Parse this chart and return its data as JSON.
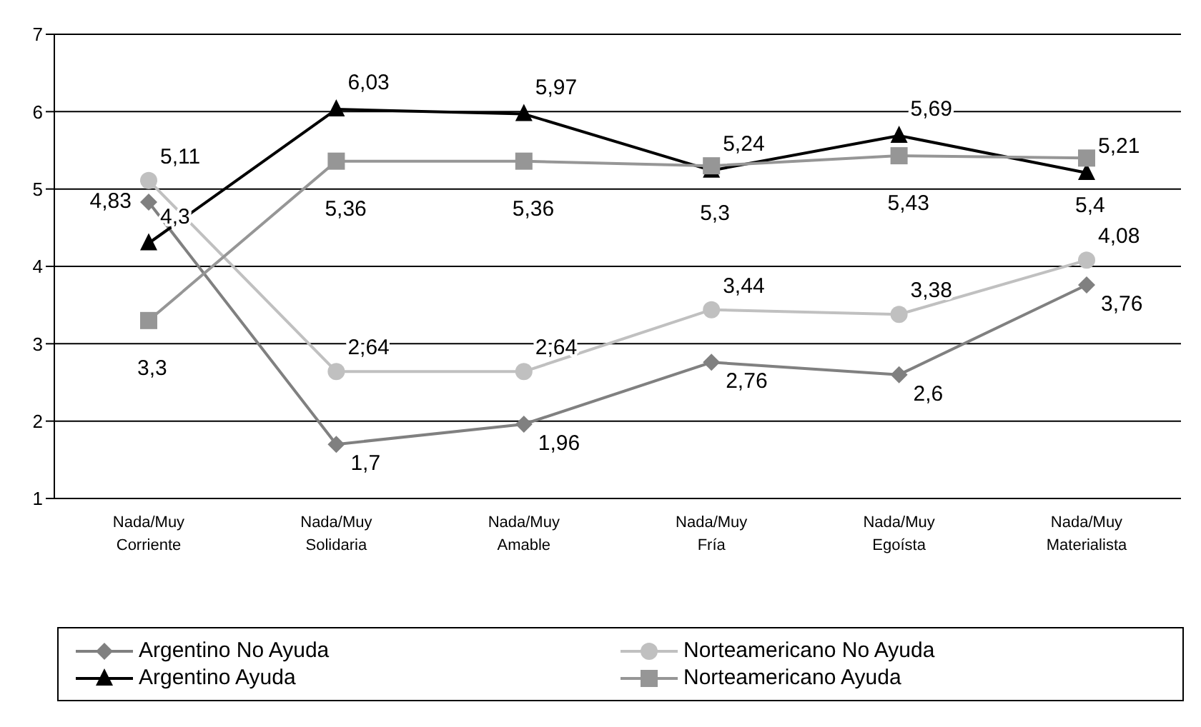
{
  "chart_data": {
    "type": "line",
    "categories": [
      "Nada/Muy Corriente",
      "Nada/Muy Solidaria",
      "Nada/Muy Amable",
      "Nada/Muy Fría",
      "Nada/Muy Egoísta",
      "Nada/Muy Materialista"
    ],
    "series": [
      {
        "name": "Argentino No Ayuda",
        "color": "#808080",
        "marker": "diamond",
        "values": [
          4.83,
          1.7,
          1.96,
          2.76,
          2.6,
          3.76
        ],
        "value_labels": [
          "4,83",
          "1,7",
          "1,96",
          "2,76",
          "2,6",
          "3,76"
        ]
      },
      {
        "name": "Norteamericano No Ayuda",
        "color": "#c0c0c0",
        "marker": "circle",
        "values": [
          5.11,
          2.64,
          2.64,
          3.44,
          3.38,
          4.08
        ],
        "value_labels": [
          "5,11",
          "2,64",
          "2,64",
          "3,44",
          "3,38",
          "4,08"
        ]
      },
      {
        "name": "Argentino Ayuda",
        "color": "#000000",
        "marker": "triangle",
        "values": [
          4.3,
          6.03,
          5.97,
          5.24,
          5.69,
          5.21
        ],
        "value_labels": [
          "4,3",
          "6,03",
          "5,97",
          "5,24",
          "5,69",
          "5,21"
        ]
      },
      {
        "name": "Norteamericano Ayuda",
        "color": "#969696",
        "marker": "square",
        "values": [
          3.3,
          5.36,
          5.36,
          5.3,
          5.43,
          5.4
        ],
        "value_labels": [
          "3,3",
          "5,36",
          "5,36",
          "5,3",
          "5,43",
          "5,4"
        ]
      }
    ],
    "ylim": [
      1,
      7
    ],
    "yticks": [
      1,
      2,
      3,
      4,
      5,
      6,
      7
    ],
    "grid": "y",
    "legend": "bottom",
    "line_style": "solid"
  }
}
